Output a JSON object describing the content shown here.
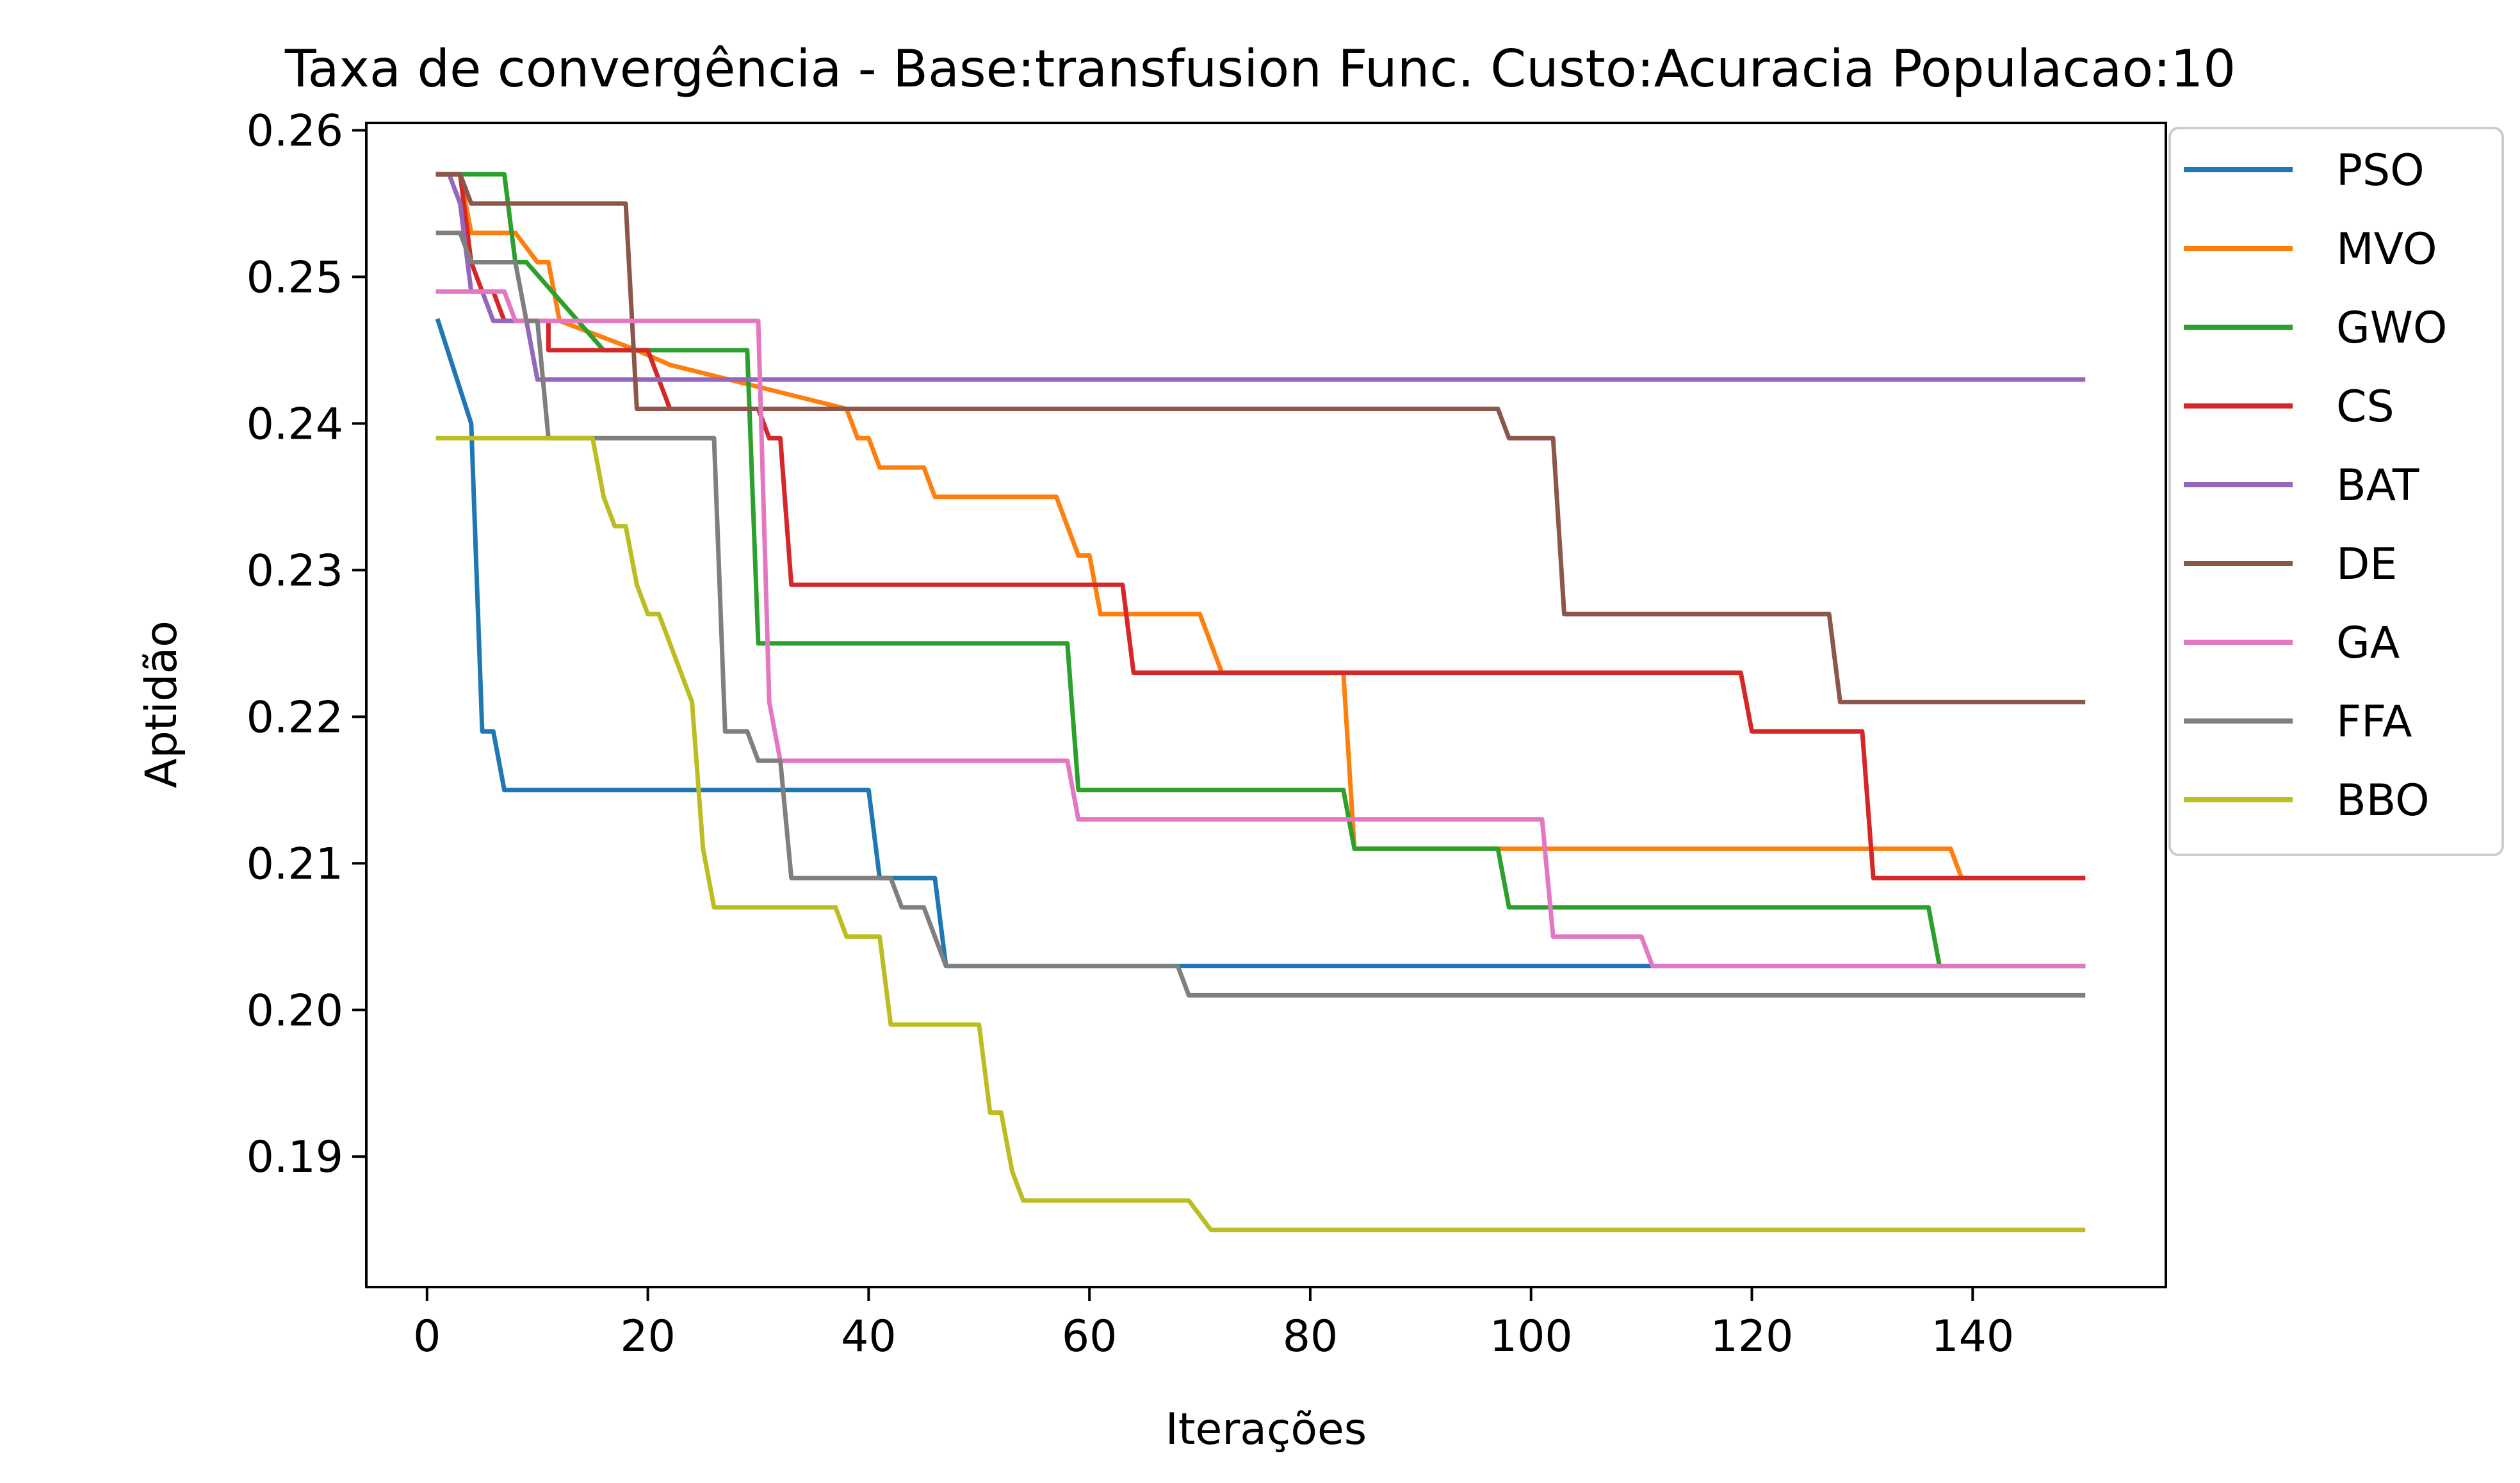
{
  "chart_data": {
    "type": "line",
    "title": "Taxa de convergência - Base:transfusion Func. Custo:Acuracia Populacao:10",
    "xlabel": "Iterações",
    "ylabel": "Aptidão",
    "xlim": [
      -5.5,
      157.5
    ],
    "ylim": [
      0.1811,
      0.2605
    ],
    "xticks": [
      0,
      20,
      40,
      60,
      80,
      100,
      120,
      140
    ],
    "yticks": [
      0.19,
      0.2,
      0.21,
      0.22,
      0.23,
      0.24,
      0.25,
      0.26
    ],
    "ytick_labels": [
      "0.19",
      "0.20",
      "0.21",
      "0.22",
      "0.23",
      "0.24",
      "0.25",
      "0.26"
    ],
    "grid": false,
    "legend_position": "outside-right-top",
    "series": [
      {
        "name": "PSO",
        "color": "#1f77b4",
        "points": [
          [
            1,
            0.247
          ],
          [
            4,
            0.24
          ],
          [
            5,
            0.219
          ],
          [
            6,
            0.219
          ],
          [
            7,
            0.215
          ],
          [
            40,
            0.215
          ],
          [
            41,
            0.209
          ],
          [
            46,
            0.209
          ],
          [
            47,
            0.203
          ],
          [
            150,
            0.203
          ]
        ]
      },
      {
        "name": "MVO",
        "color": "#ff7f0e",
        "points": [
          [
            1,
            0.257
          ],
          [
            3,
            0.257
          ],
          [
            4,
            0.253
          ],
          [
            7,
            0.253
          ],
          [
            8,
            0.253
          ],
          [
            10,
            0.251
          ],
          [
            11,
            0.251
          ],
          [
            12,
            0.247
          ],
          [
            19,
            0.245
          ],
          [
            22,
            0.244
          ],
          [
            38,
            0.241
          ],
          [
            39,
            0.239
          ],
          [
            40,
            0.239
          ],
          [
            41,
            0.237
          ],
          [
            45,
            0.237
          ],
          [
            46,
            0.235
          ],
          [
            57,
            0.235
          ],
          [
            59,
            0.231
          ],
          [
            60,
            0.231
          ],
          [
            61,
            0.227
          ],
          [
            64,
            0.227
          ],
          [
            65,
            0.227
          ],
          [
            70,
            0.227
          ],
          [
            72,
            0.223
          ],
          [
            83,
            0.223
          ],
          [
            84,
            0.211
          ],
          [
            138,
            0.211
          ],
          [
            139,
            0.209
          ],
          [
            150,
            0.209
          ]
        ]
      },
      {
        "name": "GWO",
        "color": "#2ca02c",
        "points": [
          [
            1,
            0.257
          ],
          [
            7,
            0.257
          ],
          [
            8,
            0.251
          ],
          [
            9,
            0.251
          ],
          [
            16,
            0.245
          ],
          [
            29,
            0.245
          ],
          [
            30,
            0.225
          ],
          [
            58,
            0.225
          ],
          [
            59,
            0.215
          ],
          [
            83,
            0.215
          ],
          [
            84,
            0.211
          ],
          [
            97,
            0.211
          ],
          [
            98,
            0.207
          ],
          [
            136,
            0.207
          ],
          [
            137,
            0.203
          ],
          [
            150,
            0.203
          ]
        ]
      },
      {
        "name": "CS",
        "color": "#d62728",
        "points": [
          [
            1,
            0.257
          ],
          [
            3,
            0.257
          ],
          [
            4,
            0.251
          ],
          [
            5,
            0.249
          ],
          [
            6,
            0.249
          ],
          [
            7,
            0.247
          ],
          [
            11,
            0.247
          ],
          [
            11,
            0.245
          ],
          [
            20,
            0.245
          ],
          [
            21,
            0.243
          ],
          [
            22,
            0.241
          ],
          [
            30,
            0.241
          ],
          [
            31,
            0.239
          ],
          [
            32,
            0.239
          ],
          [
            33,
            0.229
          ],
          [
            63,
            0.229
          ],
          [
            64,
            0.223
          ],
          [
            119,
            0.223
          ],
          [
            120,
            0.219
          ],
          [
            130,
            0.219
          ],
          [
            131,
            0.209
          ],
          [
            150,
            0.209
          ]
        ]
      },
      {
        "name": "BAT",
        "color": "#9467bd",
        "points": [
          [
            1,
            0.257
          ],
          [
            2,
            0.257
          ],
          [
            3,
            0.255
          ],
          [
            4,
            0.249
          ],
          [
            5,
            0.249
          ],
          [
            6,
            0.247
          ],
          [
            9,
            0.247
          ],
          [
            10,
            0.243
          ],
          [
            150,
            0.243
          ]
        ]
      },
      {
        "name": "DE",
        "color": "#8c564b",
        "points": [
          [
            1,
            0.257
          ],
          [
            3,
            0.257
          ],
          [
            4,
            0.255
          ],
          [
            18,
            0.255
          ],
          [
            19,
            0.241
          ],
          [
            97,
            0.241
          ],
          [
            98,
            0.239
          ],
          [
            102,
            0.239
          ],
          [
            103,
            0.227
          ],
          [
            127,
            0.227
          ],
          [
            128,
            0.221
          ],
          [
            150,
            0.221
          ]
        ]
      },
      {
        "name": "GA",
        "color": "#e377c2",
        "points": [
          [
            1,
            0.249
          ],
          [
            4,
            0.249
          ],
          [
            6,
            0.249
          ],
          [
            7,
            0.249
          ],
          [
            8,
            0.247
          ],
          [
            30,
            0.247
          ],
          [
            31,
            0.221
          ],
          [
            32,
            0.217
          ],
          [
            58,
            0.217
          ],
          [
            59,
            0.213
          ],
          [
            101,
            0.213
          ],
          [
            102,
            0.205
          ],
          [
            110,
            0.205
          ],
          [
            111,
            0.203
          ],
          [
            150,
            0.203
          ]
        ]
      },
      {
        "name": "FFA",
        "color": "#7f7f7f",
        "points": [
          [
            1,
            0.253
          ],
          [
            3,
            0.253
          ],
          [
            4,
            0.251
          ],
          [
            8,
            0.251
          ],
          [
            9,
            0.247
          ],
          [
            10,
            0.247
          ],
          [
            11,
            0.239
          ],
          [
            26,
            0.239
          ],
          [
            27,
            0.219
          ],
          [
            29,
            0.219
          ],
          [
            30,
            0.217
          ],
          [
            32,
            0.217
          ],
          [
            33,
            0.209
          ],
          [
            42,
            0.209
          ],
          [
            43,
            0.207
          ],
          [
            45,
            0.207
          ],
          [
            47,
            0.203
          ],
          [
            68,
            0.203
          ],
          [
            69,
            0.201
          ],
          [
            150,
            0.201
          ]
        ]
      },
      {
        "name": "BBO",
        "color": "#bcbd22",
        "points": [
          [
            1,
            0.239
          ],
          [
            15,
            0.239
          ],
          [
            16,
            0.235
          ],
          [
            17,
            0.233
          ],
          [
            18,
            0.233
          ],
          [
            19,
            0.229
          ],
          [
            20,
            0.227
          ],
          [
            21,
            0.227
          ],
          [
            24,
            0.221
          ],
          [
            25,
            0.211
          ],
          [
            26,
            0.207
          ],
          [
            37,
            0.207
          ],
          [
            38,
            0.205
          ],
          [
            41,
            0.205
          ],
          [
            42,
            0.199
          ],
          [
            50,
            0.199
          ],
          [
            51,
            0.193
          ],
          [
            52,
            0.193
          ],
          [
            53,
            0.189
          ],
          [
            54,
            0.187
          ],
          [
            69,
            0.187
          ],
          [
            71,
            0.185
          ],
          [
            150,
            0.185
          ]
        ]
      }
    ]
  }
}
